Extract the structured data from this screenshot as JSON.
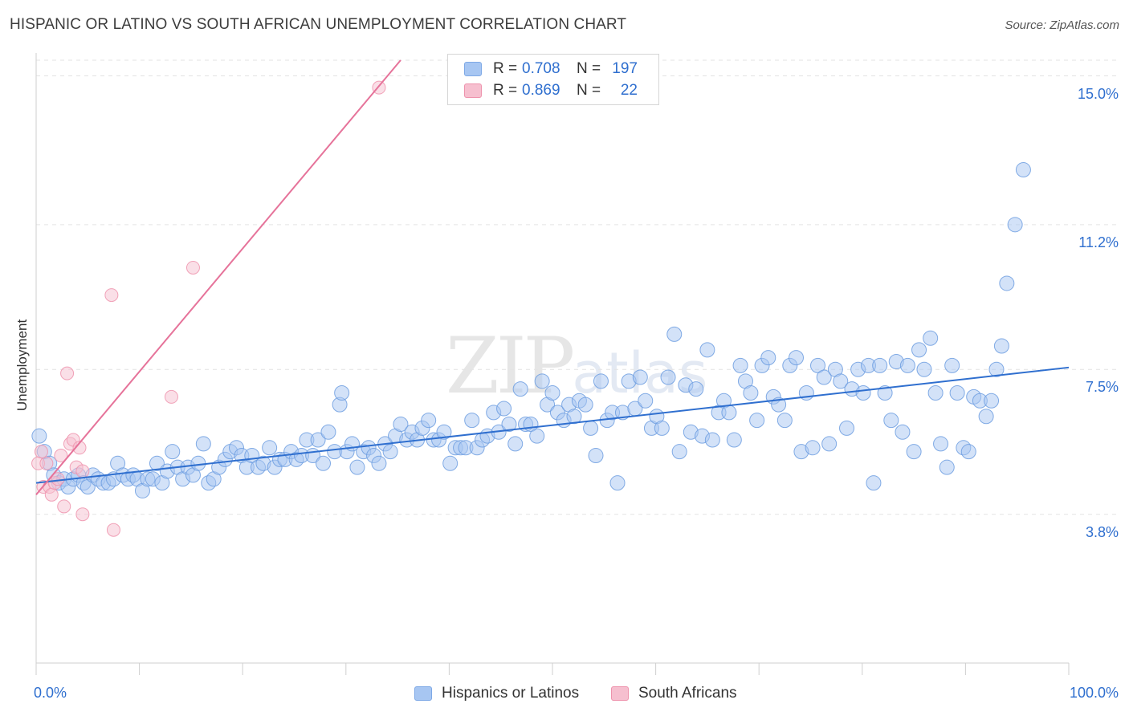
{
  "title": "HISPANIC OR LATINO VS SOUTH AFRICAN UNEMPLOYMENT CORRELATION CHART",
  "source": "Source: ZipAtlas.com",
  "watermark": {
    "main": "ZIP",
    "sub": "atlas"
  },
  "legend_top": {
    "rows": [
      {
        "r_label": "R =",
        "r_value": "0.708",
        "n_label": "N =",
        "n_value": "197",
        "color": "#a7c6f2",
        "border": "#7ea9e6"
      },
      {
        "r_label": "R =",
        "r_value": "0.869",
        "n_label": "N =",
        "n_value": "22",
        "color": "#f6bfcf",
        "border": "#ee93ad"
      }
    ]
  },
  "legend_bottom": [
    {
      "label": "Hispanics or Latinos",
      "color": "#a7c6f2",
      "border": "#7ea9e6"
    },
    {
      "label": "South Africans",
      "color": "#f6bfcf",
      "border": "#ee93ad"
    }
  ],
  "chart_data": {
    "type": "scatter",
    "title": "HISPANIC OR LATINO VS SOUTH AFRICAN UNEMPLOYMENT CORRELATION CHART",
    "xlabel": "",
    "ylabel": "Unemployment",
    "xlim": [
      0,
      100
    ],
    "ylim": [
      0,
      15.4
    ],
    "x_tick_labels": [
      "0.0%",
      "100.0%"
    ],
    "y_ticks": [
      {
        "value": 3.8,
        "label": "3.8%"
      },
      {
        "value": 7.5,
        "label": "7.5%"
      },
      {
        "value": 11.2,
        "label": "11.2%"
      },
      {
        "value": 15.0,
        "label": "15.0%"
      }
    ],
    "series": [
      {
        "name": "Hispanics or Latinos",
        "color": "#a7c6f2",
        "edge": "#6d9ee0",
        "trend": {
          "x": [
            0,
            100
          ],
          "y": [
            4.6,
            7.55
          ],
          "color": "#2f6fcf"
        },
        "points": [
          [
            0.3,
            5.8
          ],
          [
            0.8,
            5.4
          ],
          [
            1.3,
            5.1
          ],
          [
            1.7,
            4.8
          ],
          [
            2.2,
            4.6
          ],
          [
            2.7,
            4.7
          ],
          [
            3.1,
            4.5
          ],
          [
            3.6,
            4.7
          ],
          [
            4.1,
            4.8
          ],
          [
            4.6,
            4.6
          ],
          [
            5.0,
            4.5
          ],
          [
            5.5,
            4.8
          ],
          [
            6.0,
            4.7
          ],
          [
            6.5,
            4.6
          ],
          [
            7.0,
            4.6
          ],
          [
            7.5,
            4.7
          ],
          [
            7.9,
            5.1
          ],
          [
            8.4,
            4.8
          ],
          [
            8.9,
            4.7
          ],
          [
            9.4,
            4.8
          ],
          [
            9.8,
            4.7
          ],
          [
            10.3,
            4.4
          ],
          [
            10.8,
            4.7
          ],
          [
            11.3,
            4.7
          ],
          [
            11.7,
            5.1
          ],
          [
            12.2,
            4.6
          ],
          [
            12.7,
            4.9
          ],
          [
            13.2,
            5.4
          ],
          [
            13.7,
            5.0
          ],
          [
            14.2,
            4.7
          ],
          [
            14.7,
            5.0
          ],
          [
            15.2,
            4.8
          ],
          [
            15.7,
            5.1
          ],
          [
            16.2,
            5.6
          ],
          [
            16.7,
            4.6
          ],
          [
            17.2,
            4.7
          ],
          [
            17.7,
            5.0
          ],
          [
            18.3,
            5.2
          ],
          [
            18.8,
            5.4
          ],
          [
            19.4,
            5.5
          ],
          [
            19.9,
            5.3
          ],
          [
            20.4,
            5.0
          ],
          [
            20.9,
            5.3
          ],
          [
            21.5,
            5.0
          ],
          [
            22.0,
            5.1
          ],
          [
            22.6,
            5.5
          ],
          [
            23.1,
            5.0
          ],
          [
            23.6,
            5.2
          ],
          [
            24.1,
            5.2
          ],
          [
            24.7,
            5.4
          ],
          [
            25.2,
            5.2
          ],
          [
            25.7,
            5.3
          ],
          [
            26.2,
            5.7
          ],
          [
            26.8,
            5.3
          ],
          [
            27.3,
            5.7
          ],
          [
            27.8,
            5.1
          ],
          [
            28.3,
            5.9
          ],
          [
            28.9,
            5.4
          ],
          [
            29.4,
            6.6
          ],
          [
            29.6,
            6.9
          ],
          [
            30.1,
            5.4
          ],
          [
            30.6,
            5.6
          ],
          [
            31.1,
            5.0
          ],
          [
            31.7,
            5.4
          ],
          [
            32.2,
            5.5
          ],
          [
            32.7,
            5.3
          ],
          [
            33.2,
            5.1
          ],
          [
            33.8,
            5.6
          ],
          [
            34.3,
            5.4
          ],
          [
            34.8,
            5.8
          ],
          [
            35.3,
            6.1
          ],
          [
            35.9,
            5.7
          ],
          [
            36.4,
            5.9
          ],
          [
            36.9,
            5.7
          ],
          [
            37.4,
            6.0
          ],
          [
            38.0,
            6.2
          ],
          [
            38.5,
            5.7
          ],
          [
            39.0,
            5.7
          ],
          [
            39.5,
            5.9
          ],
          [
            40.1,
            5.1
          ],
          [
            40.6,
            5.5
          ],
          [
            41.1,
            5.5
          ],
          [
            41.6,
            5.5
          ],
          [
            42.2,
            6.2
          ],
          [
            42.7,
            5.5
          ],
          [
            43.2,
            5.7
          ],
          [
            43.7,
            5.8
          ],
          [
            44.3,
            6.4
          ],
          [
            44.8,
            5.9
          ],
          [
            45.3,
            6.5
          ],
          [
            45.8,
            6.1
          ],
          [
            46.4,
            5.6
          ],
          [
            46.9,
            7.0
          ],
          [
            47.4,
            6.1
          ],
          [
            47.9,
            6.1
          ],
          [
            48.5,
            5.8
          ],
          [
            49.0,
            7.2
          ],
          [
            49.5,
            6.6
          ],
          [
            50.0,
            6.9
          ],
          [
            50.5,
            6.4
          ],
          [
            51.1,
            6.2
          ],
          [
            51.6,
            6.6
          ],
          [
            52.1,
            6.3
          ],
          [
            52.6,
            6.7
          ],
          [
            53.2,
            6.6
          ],
          [
            53.7,
            6.0
          ],
          [
            54.2,
            5.3
          ],
          [
            54.7,
            7.2
          ],
          [
            55.3,
            6.2
          ],
          [
            55.8,
            6.4
          ],
          [
            56.3,
            4.6
          ],
          [
            56.8,
            6.4
          ],
          [
            57.4,
            7.2
          ],
          [
            58.0,
            6.5
          ],
          [
            58.5,
            7.3
          ],
          [
            59.0,
            6.7
          ],
          [
            59.6,
            6.0
          ],
          [
            60.1,
            6.3
          ],
          [
            60.6,
            6.0
          ],
          [
            61.2,
            7.3
          ],
          [
            61.8,
            8.4
          ],
          [
            62.3,
            5.4
          ],
          [
            62.9,
            7.1
          ],
          [
            63.4,
            5.9
          ],
          [
            63.9,
            7.0
          ],
          [
            64.5,
            5.8
          ],
          [
            65.0,
            8.0
          ],
          [
            65.5,
            5.7
          ],
          [
            66.1,
            6.4
          ],
          [
            66.6,
            6.7
          ],
          [
            67.1,
            6.4
          ],
          [
            67.6,
            5.7
          ],
          [
            68.2,
            7.6
          ],
          [
            68.7,
            7.2
          ],
          [
            69.2,
            6.9
          ],
          [
            69.8,
            6.2
          ],
          [
            70.3,
            7.6
          ],
          [
            70.9,
            7.8
          ],
          [
            71.4,
            6.8
          ],
          [
            71.9,
            6.6
          ],
          [
            72.5,
            6.2
          ],
          [
            73.0,
            7.6
          ],
          [
            73.6,
            7.8
          ],
          [
            74.1,
            5.4
          ],
          [
            74.6,
            6.9
          ],
          [
            75.2,
            5.5
          ],
          [
            75.7,
            7.6
          ],
          [
            76.3,
            7.3
          ],
          [
            76.8,
            5.6
          ],
          [
            77.4,
            7.5
          ],
          [
            77.9,
            7.2
          ],
          [
            78.5,
            6.0
          ],
          [
            79.0,
            7.0
          ],
          [
            79.6,
            7.5
          ],
          [
            80.1,
            6.9
          ],
          [
            80.6,
            7.6
          ],
          [
            81.1,
            4.6
          ],
          [
            81.7,
            7.6
          ],
          [
            82.2,
            6.9
          ],
          [
            82.8,
            6.2
          ],
          [
            83.3,
            7.7
          ],
          [
            83.9,
            5.9
          ],
          [
            84.4,
            7.6
          ],
          [
            85.0,
            5.4
          ],
          [
            85.5,
            8.0
          ],
          [
            86.0,
            7.5
          ],
          [
            86.6,
            8.3
          ],
          [
            87.1,
            6.9
          ],
          [
            87.6,
            5.6
          ],
          [
            88.2,
            5.0
          ],
          [
            88.7,
            7.6
          ],
          [
            89.2,
            6.9
          ],
          [
            89.8,
            5.5
          ],
          [
            90.3,
            5.4
          ],
          [
            90.8,
            6.8
          ],
          [
            91.4,
            6.7
          ],
          [
            92.0,
            6.3
          ],
          [
            92.5,
            6.7
          ],
          [
            93.0,
            7.5
          ],
          [
            93.5,
            8.1
          ],
          [
            94.0,
            9.7
          ],
          [
            94.8,
            11.2
          ],
          [
            95.6,
            12.6
          ]
        ]
      },
      {
        "name": "South Africans",
        "color": "#f6bfcf",
        "edge": "#ee93ad",
        "trend": {
          "x": [
            0,
            35.3
          ],
          "y": [
            4.3,
            15.4
          ],
          "color": "#e6739a"
        },
        "points": [
          [
            0.2,
            5.1
          ],
          [
            0.5,
            5.4
          ],
          [
            0.7,
            4.5
          ],
          [
            1.0,
            5.1
          ],
          [
            1.3,
            4.5
          ],
          [
            1.5,
            4.3
          ],
          [
            1.8,
            4.6
          ],
          [
            2.1,
            4.7
          ],
          [
            2.4,
            5.3
          ],
          [
            2.7,
            4.0
          ],
          [
            3.0,
            7.4
          ],
          [
            3.3,
            5.6
          ],
          [
            3.6,
            5.7
          ],
          [
            3.9,
            5.0
          ],
          [
            4.2,
            5.5
          ],
          [
            4.5,
            4.9
          ],
          [
            4.5,
            3.8
          ],
          [
            7.3,
            9.4
          ],
          [
            7.5,
            3.4
          ],
          [
            13.1,
            6.8
          ],
          [
            15.2,
            10.1
          ],
          [
            33.2,
            14.7
          ]
        ]
      }
    ]
  }
}
